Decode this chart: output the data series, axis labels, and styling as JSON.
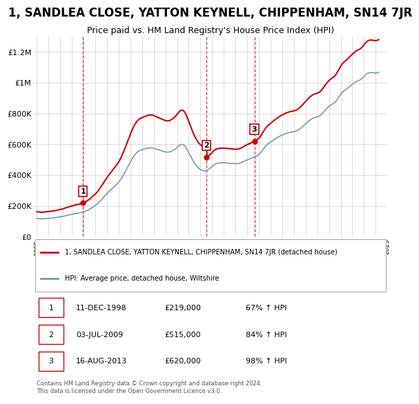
{
  "title": "1, SANDLEA CLOSE, YATTON KEYNELL, CHIPPENHAM, SN14 7JR",
  "subtitle": "Price paid vs. HM Land Registry's House Price Index (HPI)",
  "title_fontsize": 12,
  "subtitle_fontsize": 9,
  "background_color": "#ffffff",
  "plot_bg_color": "#ffffff",
  "grid_color": "#cccccc",
  "red_color": "#cc0000",
  "blue_color": "#7799bb",
  "ylim": [
    0,
    1300000
  ],
  "yticks": [
    0,
    200000,
    400000,
    600000,
    800000,
    1000000,
    1200000
  ],
  "ytick_labels": [
    "£0",
    "£200K",
    "£400K",
    "£600K",
    "£800K",
    "£1M",
    "£1.2M"
  ],
  "sale_dates": [
    1998.94,
    2009.5,
    2013.62
  ],
  "sale_prices": [
    219000,
    515000,
    620000
  ],
  "sale_labels": [
    "1",
    "2",
    "3"
  ],
  "legend_red": "1, SANDLEA CLOSE, YATTON KEYNELL, CHIPPENHAM, SN14 7JR (detached house)",
  "legend_blue": "HPI: Average price, detached house, Wiltshire",
  "table_data": [
    [
      "1",
      "11-DEC-1998",
      "£219,000",
      "67% ↑ HPI"
    ],
    [
      "2",
      "03-JUL-2009",
      "£515,000",
      "84% ↑ HPI"
    ],
    [
      "3",
      "16-AUG-2013",
      "£620,000",
      "98% ↑ HPI"
    ]
  ],
  "footnote": "Contains HM Land Registry data © Crown copyright and database right 2024.\nThis data is licensed under the Open Government Licence v3.0.",
  "hpi_years": [
    1995.0,
    1995.08,
    1995.17,
    1995.25,
    1995.33,
    1995.42,
    1995.5,
    1995.58,
    1995.67,
    1995.75,
    1995.83,
    1995.92,
    1996.0,
    1996.08,
    1996.17,
    1996.25,
    1996.33,
    1996.42,
    1996.5,
    1996.58,
    1996.67,
    1996.75,
    1996.83,
    1996.92,
    1997.0,
    1997.08,
    1997.17,
    1997.25,
    1997.33,
    1997.42,
    1997.5,
    1997.58,
    1997.67,
    1997.75,
    1997.83,
    1997.92,
    1998.0,
    1998.08,
    1998.17,
    1998.25,
    1998.33,
    1998.42,
    1998.5,
    1998.58,
    1998.67,
    1998.75,
    1998.83,
    1998.92,
    1999.0,
    1999.08,
    1999.17,
    1999.25,
    1999.33,
    1999.42,
    1999.5,
    1999.58,
    1999.67,
    1999.75,
    1999.83,
    1999.92,
    2000.0,
    2000.08,
    2000.17,
    2000.25,
    2000.33,
    2000.42,
    2000.5,
    2000.58,
    2000.67,
    2000.75,
    2000.83,
    2000.92,
    2001.0,
    2001.08,
    2001.17,
    2001.25,
    2001.33,
    2001.42,
    2001.5,
    2001.58,
    2001.67,
    2001.75,
    2001.83,
    2001.92,
    2002.0,
    2002.08,
    2002.17,
    2002.25,
    2002.33,
    2002.42,
    2002.5,
    2002.58,
    2002.67,
    2002.75,
    2002.83,
    2002.92,
    2003.0,
    2003.08,
    2003.17,
    2003.25,
    2003.33,
    2003.42,
    2003.5,
    2003.58,
    2003.67,
    2003.75,
    2003.83,
    2003.92,
    2004.0,
    2004.08,
    2004.17,
    2004.25,
    2004.33,
    2004.42,
    2004.5,
    2004.58,
    2004.67,
    2004.75,
    2004.83,
    2004.92,
    2005.0,
    2005.08,
    2005.17,
    2005.25,
    2005.33,
    2005.42,
    2005.5,
    2005.58,
    2005.67,
    2005.75,
    2005.83,
    2005.92,
    2006.0,
    2006.08,
    2006.17,
    2006.25,
    2006.33,
    2006.42,
    2006.5,
    2006.58,
    2006.67,
    2006.75,
    2006.83,
    2006.92,
    2007.0,
    2007.08,
    2007.17,
    2007.25,
    2007.33,
    2007.42,
    2007.5,
    2007.58,
    2007.67,
    2007.75,
    2007.83,
    2007.92,
    2008.0,
    2008.08,
    2008.17,
    2008.25,
    2008.33,
    2008.42,
    2008.5,
    2008.58,
    2008.67,
    2008.75,
    2008.83,
    2008.92,
    2009.0,
    2009.08,
    2009.17,
    2009.25,
    2009.33,
    2009.42,
    2009.5,
    2009.58,
    2009.67,
    2009.75,
    2009.83,
    2009.92,
    2010.0,
    2010.08,
    2010.17,
    2010.25,
    2010.33,
    2010.42,
    2010.5,
    2010.58,
    2010.67,
    2010.75,
    2010.83,
    2010.92,
    2011.0,
    2011.08,
    2011.17,
    2011.25,
    2011.33,
    2011.42,
    2011.5,
    2011.58,
    2011.67,
    2011.75,
    2011.83,
    2011.92,
    2012.0,
    2012.08,
    2012.17,
    2012.25,
    2012.33,
    2012.42,
    2012.5,
    2012.58,
    2012.67,
    2012.75,
    2012.83,
    2012.92,
    2013.0,
    2013.08,
    2013.17,
    2013.25,
    2013.33,
    2013.42,
    2013.5,
    2013.58,
    2013.67,
    2013.75,
    2013.83,
    2013.92,
    2014.0,
    2014.08,
    2014.17,
    2014.25,
    2014.33,
    2014.42,
    2014.5,
    2014.58,
    2014.67,
    2014.75,
    2014.83,
    2014.92,
    2015.0,
    2015.08,
    2015.17,
    2015.25,
    2015.33,
    2015.42,
    2015.5,
    2015.58,
    2015.67,
    2015.75,
    2015.83,
    2015.92,
    2016.0,
    2016.08,
    2016.17,
    2016.25,
    2016.33,
    2016.42,
    2016.5,
    2016.58,
    2016.67,
    2016.75,
    2016.83,
    2016.92,
    2017.0,
    2017.08,
    2017.17,
    2017.25,
    2017.33,
    2017.42,
    2017.5,
    2017.58,
    2017.67,
    2017.75,
    2017.83,
    2017.92,
    2018.0,
    2018.08,
    2018.17,
    2018.25,
    2018.33,
    2018.42,
    2018.5,
    2018.58,
    2018.67,
    2018.75,
    2018.83,
    2018.92,
    2019.0,
    2019.08,
    2019.17,
    2019.25,
    2019.33,
    2019.42,
    2019.5,
    2019.58,
    2019.67,
    2019.75,
    2019.83,
    2019.92,
    2020.0,
    2020.08,
    2020.17,
    2020.25,
    2020.33,
    2020.42,
    2020.5,
    2020.58,
    2020.67,
    2020.75,
    2020.83,
    2020.92,
    2021.0,
    2021.08,
    2021.17,
    2021.25,
    2021.33,
    2021.42,
    2021.5,
    2021.58,
    2021.67,
    2021.75,
    2021.83,
    2021.92,
    2022.0,
    2022.08,
    2022.17,
    2022.25,
    2022.33,
    2022.42,
    2022.5,
    2022.58,
    2022.67,
    2022.75,
    2022.83,
    2022.92,
    2023.0,
    2023.08,
    2023.17,
    2023.25,
    2023.33,
    2023.42,
    2023.5,
    2023.58,
    2023.67,
    2023.75,
    2023.83,
    2023.92,
    2024.0,
    2024.08,
    2024.17,
    2024.25
  ],
  "hpi_values": [
    119000,
    118000,
    117500,
    117000,
    116500,
    116000,
    116500,
    117000,
    117500,
    118000,
    118500,
    119000,
    119500,
    120000,
    120500,
    121000,
    121500,
    122000,
    123000,
    124000,
    125000,
    126000,
    127000,
    128000,
    129000,
    130000,
    131500,
    133000,
    134500,
    136000,
    137500,
    139000,
    140500,
    142000,
    143500,
    145000,
    146500,
    148000,
    149000,
    150000,
    151000,
    152000,
    153000,
    154000,
    155000,
    156500,
    158000,
    159500,
    161000,
    163000,
    165500,
    168000,
    171000,
    174500,
    178000,
    182000,
    186000,
    190000,
    194000,
    198000,
    202000,
    207000,
    212000,
    218000,
    224000,
    231000,
    238000,
    245000,
    252000,
    259000,
    266000,
    273000,
    280000,
    287000,
    293000,
    299000,
    305000,
    311000,
    317000,
    323000,
    329000,
    335000,
    341000,
    347000,
    354000,
    362000,
    371000,
    381000,
    391000,
    402000,
    413000,
    425000,
    437000,
    449000,
    461000,
    473000,
    485000,
    497000,
    508000,
    518000,
    527000,
    535000,
    542000,
    548000,
    553000,
    557000,
    560000,
    562000,
    564000,
    566000,
    568000,
    570000,
    572000,
    574000,
    575000,
    576000,
    577000,
    577000,
    576500,
    575500,
    574000,
    572000,
    570000,
    568000,
    566000,
    564000,
    562000,
    560000,
    558000,
    556000,
    554000,
    552000,
    550500,
    549500,
    549000,
    549000,
    550000,
    552000,
    554500,
    557500,
    561000,
    565000,
    569500,
    574500,
    580000,
    586000,
    591500,
    596000,
    599000,
    600000,
    598500,
    595000,
    589000,
    580500,
    570000,
    558000,
    546000,
    534000,
    522000,
    510000,
    498000,
    487000,
    477000,
    468000,
    460000,
    452500,
    446000,
    440500,
    436000,
    432500,
    430000,
    428500,
    428000,
    428500,
    430000,
    432500,
    436000,
    440500,
    445500,
    451000,
    457000,
    462500,
    467500,
    471500,
    474500,
    476500,
    478000,
    479000,
    479500,
    480000,
    480000,
    480000,
    480000,
    479500,
    479000,
    478500,
    478000,
    477500,
    477000,
    476500,
    476000,
    475500,
    475000,
    474500,
    474000,
    474000,
    474500,
    475500,
    477000,
    479000,
    481500,
    484500,
    487500,
    490500,
    493500,
    496500,
    499000,
    501500,
    504000,
    506500,
    509000,
    511500,
    514000,
    516500,
    519000,
    522000,
    525500,
    529500,
    534000,
    540000,
    547000,
    555500,
    564500,
    573500,
    582000,
    589500,
    596000,
    601500,
    606000,
    610000,
    614000,
    618500,
    623000,
    627500,
    632000,
    636000,
    640000,
    644000,
    647500,
    651000,
    654500,
    657500,
    660000,
    663000,
    665500,
    668000,
    670500,
    672500,
    674500,
    676000,
    677500,
    679000,
    680000,
    681000,
    682000,
    683500,
    685500,
    688000,
    691000,
    695000,
    699500,
    704500,
    710000,
    715500,
    721000,
    727000,
    733000,
    739000,
    745000,
    750500,
    755500,
    760000,
    764000,
    767500,
    770500,
    773000,
    775000,
    776500,
    778000,
    780000,
    783000,
    787000,
    792000,
    798500,
    806000,
    813500,
    821000,
    828000,
    834500,
    840500,
    846000,
    851000,
    855500,
    859500,
    863000,
    867000,
    872000,
    878500,
    886500,
    895500,
    905000,
    915000,
    924000,
    932000,
    939000,
    944500,
    949000,
    953500,
    958000,
    963000,
    968500,
    974000,
    979000,
    984000,
    989000,
    994000,
    998500,
    1003000,
    1007000,
    1010000,
    1012500,
    1015000,
    1018000,
    1022000,
    1027000,
    1033000,
    1040000,
    1047000,
    1053000,
    1058000,
    1061500,
    1064000,
    1065000,
    1065500,
    1065000,
    1064000,
    1063000,
    1062000,
    1062000,
    1063000,
    1065000,
    1068000
  ]
}
